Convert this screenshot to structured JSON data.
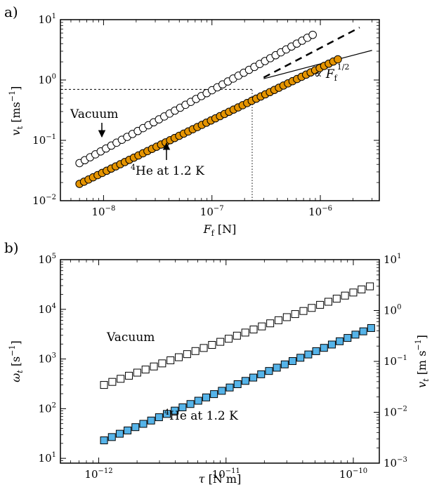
{
  "chart_data": [
    {
      "type": "scatter",
      "panel_label": "a)",
      "xlabel": "F_f [N]",
      "ylabel": "v_t [ms^-1]",
      "x_scale": "log",
      "y_scale": "log",
      "xlim": [
        4e-09,
        3.5e-06
      ],
      "ylim": [
        0.01,
        10
      ],
      "xticks": [
        {
          "value": 1e-08,
          "label": "10^-8"
        },
        {
          "value": 1e-07,
          "label": "10^-7"
        },
        {
          "value": 1e-06,
          "label": "10^-6"
        }
      ],
      "yticks": [
        {
          "value": 0.01,
          "label": "10^-2"
        },
        {
          "value": 0.1,
          "label": "10^-1"
        },
        {
          "value": 1,
          "label": "10^0"
        },
        {
          "value": 10,
          "label": "10^1"
        }
      ],
      "series": [
        {
          "name": "Vacuum",
          "marker": "circle-open",
          "color": "#ffffff",
          "x_start": 6e-09,
          "x_end": 8.5e-07,
          "y_start": 0.042,
          "y_end": 5.6,
          "n_points": 45
        },
        {
          "name": "4He at 1.2 K",
          "marker": "circle-filled",
          "color": "#E59400",
          "x_start": 6e-09,
          "x_end": 1.45e-06,
          "y_start": 0.019,
          "y_end": 2.2,
          "n_points": 58
        }
      ],
      "guides": [
        {
          "kind": "dashed-line",
          "x": [
            3e-07,
            2.3e-06
          ],
          "y": [
            1.1,
            7.4
          ]
        },
        {
          "kind": "solid-line",
          "label": "∝ F_f^1/2",
          "x": [
            3e-07,
            3e-06
          ],
          "y": [
            1.05,
            3.1
          ]
        },
        {
          "kind": "dashed-horizontal",
          "x": [
            4e-09,
            2.35e-07
          ],
          "y": 0.7
        },
        {
          "kind": "dotted-vertical",
          "x": 2.35e-07,
          "y": [
            0.01,
            0.7
          ]
        }
      ],
      "annotations": [
        {
          "text": "Vacuum",
          "arrow_to": [
            1e-08,
            0.1
          ]
        },
        {
          "text": "4He at 1.2 K",
          "arrow_to": [
            4e-08,
            0.1
          ]
        }
      ]
    },
    {
      "type": "scatter",
      "panel_label": "b)",
      "xlabel": "τ [N m]",
      "ylabel": "ω_t [s^-1]",
      "ylabel_right": "v_t [m s^-1]",
      "x_scale": "log",
      "y_scale": "log",
      "xlim": [
        5e-13,
        1.6e-10
      ],
      "ylim": [
        8,
        100000
      ],
      "xticks": [
        {
          "value": 1e-12,
          "label": "10^-12"
        },
        {
          "value": 1e-11,
          "label": "10^-11"
        },
        {
          "value": 1e-10,
          "label": "10^-10"
        }
      ],
      "yticks": [
        {
          "value": 10,
          "label": "10^1"
        },
        {
          "value": 100,
          "label": "10^2"
        },
        {
          "value": 1000,
          "label": "10^3"
        },
        {
          "value": 10000,
          "label": "10^4"
        },
        {
          "value": 100000,
          "label": "10^5"
        }
      ],
      "yticks_right": [
        {
          "label": "10^-3"
        },
        {
          "label": "10^-2"
        },
        {
          "label": "10^-1"
        },
        {
          "label": "10^0"
        },
        {
          "label": "10^1"
        }
      ],
      "series": [
        {
          "name": "Vacuum",
          "marker": "square-open",
          "color": "#ffffff",
          "x_start": 1.1e-12,
          "x_end": 1.35e-10,
          "y_start": 300,
          "y_end": 29000,
          "n_points": 33
        },
        {
          "name": "4He at 1.2 K",
          "marker": "square-filled",
          "color": "#56B4E9",
          "x_start": 1.1e-12,
          "x_end": 1.38e-10,
          "y_start": 23,
          "y_end": 4200,
          "n_points": 35
        }
      ],
      "annotations": [
        {
          "text": "Vacuum"
        },
        {
          "text": "4He at 1.2 K"
        }
      ]
    }
  ],
  "text": {
    "a_label": "a)",
    "b_label": "b)",
    "a_vacuum": "Vacuum",
    "a_he_sup": "4",
    "a_he": "He at 1.2 K",
    "a_prop": "∝ F",
    "a_prop_sub": "f",
    "a_prop_sup": "1/2",
    "b_vacuum": "Vacuum",
    "b_he_sup": "4",
    "b_he": "He at 1.2 K"
  }
}
